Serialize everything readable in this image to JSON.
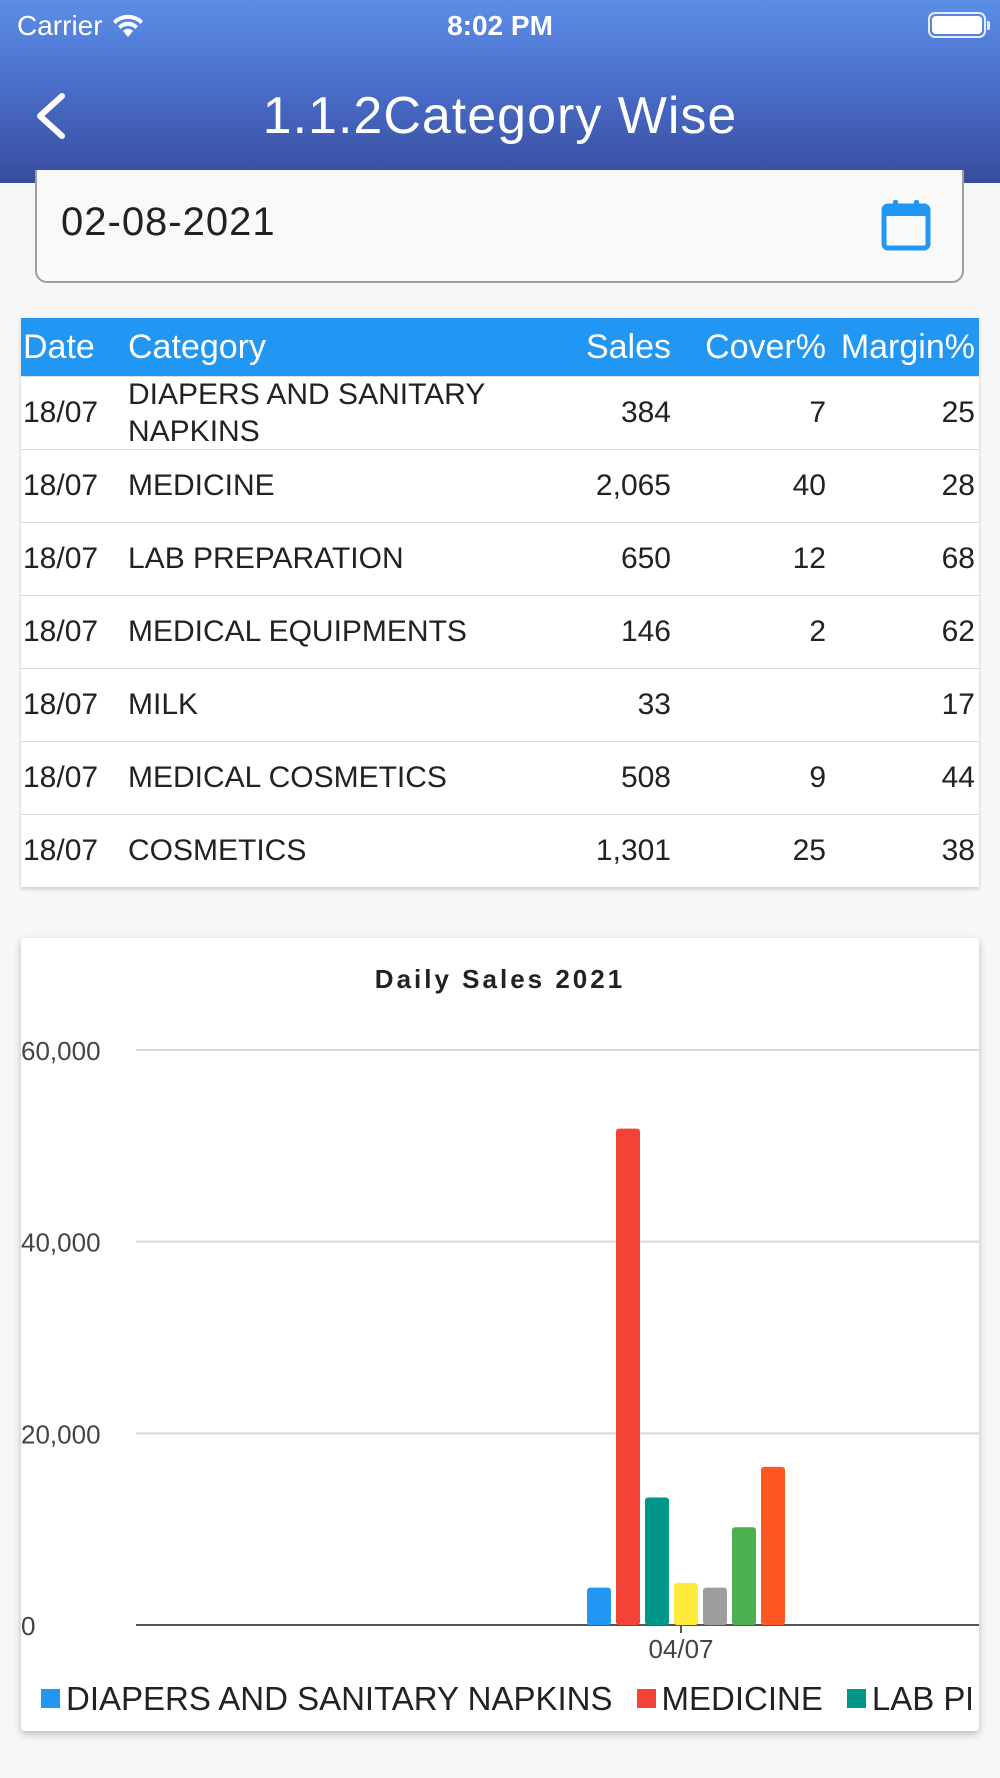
{
  "status_bar": {
    "carrier": "Carrier",
    "time": "8:02 PM"
  },
  "header": {
    "title": "1.1.2Category Wise"
  },
  "date_field": {
    "value": "02-08-2021"
  },
  "table": {
    "headers": {
      "date": "Date",
      "category": "Category",
      "sales": "Sales",
      "cover": "Cover%",
      "margin": "Margin%"
    },
    "rows": [
      {
        "date": "18/07",
        "category": "DIAPERS AND SANITARY NAPKINS",
        "sales": "384",
        "cover": "7",
        "margin": "25"
      },
      {
        "date": "18/07",
        "category": "MEDICINE",
        "sales": "2,065",
        "cover": "40",
        "margin": "28"
      },
      {
        "date": "18/07",
        "category": "LAB PREPARATION",
        "sales": "650",
        "cover": "12",
        "margin": "68"
      },
      {
        "date": "18/07",
        "category": "MEDICAL EQUIPMENTS",
        "sales": "146",
        "cover": "2",
        "margin": "62"
      },
      {
        "date": "18/07",
        "category": "MILK",
        "sales": "33",
        "cover": "",
        "margin": "17"
      },
      {
        "date": "18/07",
        "category": "MEDICAL COSMETICS",
        "sales": "508",
        "cover": "9",
        "margin": "44"
      },
      {
        "date": "18/07",
        "category": "COSMETICS",
        "sales": "1,301",
        "cover": "25",
        "margin": "38"
      }
    ]
  },
  "chart_data": {
    "type": "bar",
    "title": "Daily Sales 2021",
    "categories": [
      "04/07"
    ],
    "ylim": [
      0,
      60000
    ],
    "yticks": [
      0,
      20000,
      40000,
      60000
    ],
    "ytick_labels": [
      "0",
      "20,000",
      "40,000",
      "60,000"
    ],
    "grid": true,
    "legend_position": "bottom",
    "series": [
      {
        "name": "DIAPERS AND SANITARY NAPKINS",
        "color": "#2196f3",
        "values": [
          3900
        ]
      },
      {
        "name": "MEDICINE",
        "color": "#f44336",
        "values": [
          51800
        ]
      },
      {
        "name": "LAB PREPARATION",
        "color": "#009688",
        "values": [
          13300
        ]
      },
      {
        "name": "",
        "color": "#ffeb3b",
        "values": [
          4400
        ]
      },
      {
        "name": "",
        "color": "#9e9e9e",
        "values": [
          3900
        ]
      },
      {
        "name": "",
        "color": "#4caf50",
        "values": [
          10200
        ]
      },
      {
        "name": "",
        "color": "#ff5722",
        "values": [
          16500
        ]
      }
    ],
    "legend_visible": [
      "DIAPERS AND SANITARY NAPKINS",
      "MEDICINE",
      "LAB PREPARATION"
    ]
  }
}
